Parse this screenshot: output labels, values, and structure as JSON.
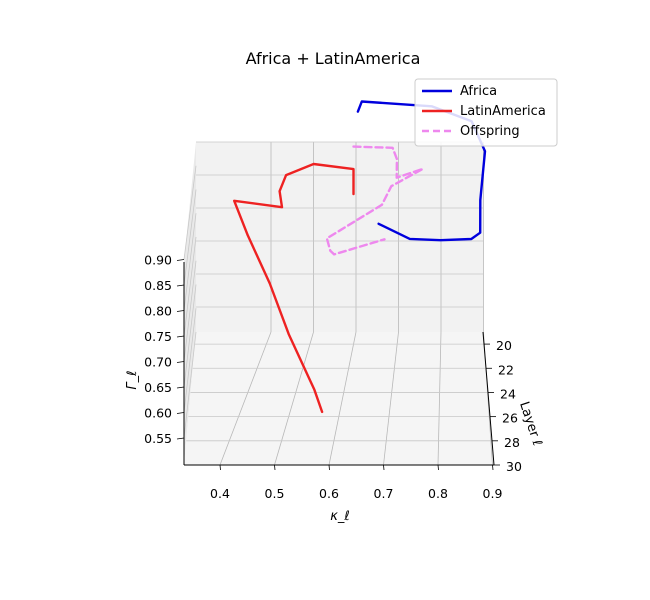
{
  "chart_data": {
    "type": "line",
    "title": "Africa + LatinAmerica",
    "xlabel": "κ_ℓ",
    "ylabel": "Layer ℓ",
    "zlabel": "Γ_ℓ",
    "xlim": [
      0.35,
      0.9
    ],
    "ylim": [
      19,
      30
    ],
    "zlim": [
      0.53,
      0.93
    ],
    "x_ticks": [
      "0.4",
      "0.5",
      "0.6",
      "0.7",
      "0.8",
      "0.9"
    ],
    "y_ticks": [
      "20",
      "22",
      "24",
      "26",
      "28",
      "30"
    ],
    "z_ticks": [
      "0.55",
      "0.60",
      "0.65",
      "0.70",
      "0.75",
      "0.80",
      "0.85",
      "0.90"
    ],
    "grid": true,
    "legend_position": "upper-right",
    "series": [
      {
        "name": "Africa",
        "color": "#0000dd",
        "dash": "solid",
        "x": [
          0.61,
          0.62,
          0.78,
          0.87,
          0.9,
          0.89,
          0.89,
          0.87,
          0.8,
          0.73,
          0.66
        ],
        "y": [
          20,
          20.2,
          20.6,
          20.8,
          20.8,
          20.5,
          20.3,
          20.2,
          20.3,
          20.4,
          20.6
        ],
        "z": [
          0.995,
          1.02,
          1.02,
          0.995,
          0.935,
          0.83,
          0.76,
          0.745,
          0.745,
          0.75,
          0.785
        ]
      },
      {
        "name": "LatinAmerica",
        "color": "#ee2222",
        "dash": "solid",
        "x": [
          0.6,
          0.6,
          0.51,
          0.45,
          0.44,
          0.45,
          0.35,
          0.39,
          0.45,
          0.5,
          0.56,
          0.58
        ],
        "y": [
          20,
          20,
          20.2,
          20.5,
          21,
          21.5,
          22,
          23,
          24.5,
          26,
          27.5,
          28.5
        ],
        "z": [
          0.83,
          0.88,
          0.895,
          0.88,
          0.86,
          0.84,
          0.865,
          0.82,
          0.76,
          0.695,
          0.62,
          0.6
        ]
      },
      {
        "name": "Offspring",
        "color": "#ee88ee",
        "dash": "dashed",
        "x": [
          0.6,
          0.69,
          0.7,
          0.7,
          0.76,
          0.69,
          0.67,
          0.55,
          0.56,
          0.57,
          0.68
        ],
        "y": [
          20,
          20.1,
          20.2,
          20.3,
          20.6,
          21,
          21.3,
          21.6,
          22,
          22.3,
          22.5
        ],
        "z": [
          0.925,
          0.925,
          0.905,
          0.87,
          0.895,
          0.87,
          0.84,
          0.78,
          0.765,
          0.765,
          0.8
        ]
      }
    ]
  }
}
